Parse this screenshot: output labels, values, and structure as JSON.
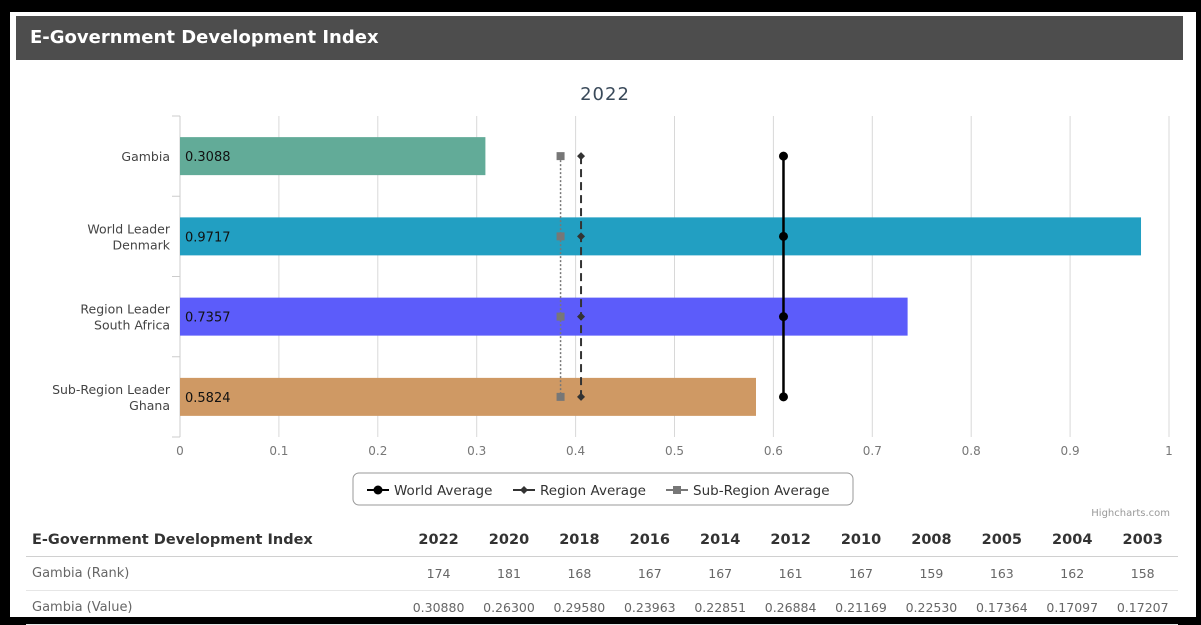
{
  "header": {
    "title": "E-Government Development Index"
  },
  "chart_data": {
    "type": "bar",
    "orientation": "horizontal",
    "title": "2022",
    "categories": [
      [
        "Gambia"
      ],
      [
        "World Leader",
        "Denmark"
      ],
      [
        "Region Leader",
        "South Africa"
      ],
      [
        "Sub-Region Leader",
        "Ghana"
      ]
    ],
    "values": [
      0.3088,
      0.9717,
      0.7357,
      0.5824
    ],
    "value_labels": [
      "0.3088",
      "0.9717",
      "0.7357",
      "0.5824"
    ],
    "bar_colors": [
      "#62ab98",
      "#229fc2",
      "#5c5cfa",
      "#cf9964"
    ],
    "xlim": [
      0,
      1
    ],
    "ticks": [
      "0",
      "0.1",
      "0.2",
      "0.3",
      "0.4",
      "0.5",
      "0.6",
      "0.7",
      "0.8",
      "0.9",
      "1"
    ],
    "grid": true,
    "reference_series": [
      {
        "name": "World Average",
        "value": 0.6102,
        "marker": "circle",
        "line": "solid",
        "color": "#000000"
      },
      {
        "name": "Region Average",
        "value": 0.4055,
        "marker": "diamond",
        "line": "dashed",
        "color": "#333333"
      },
      {
        "name": "Sub-Region Average",
        "value": 0.3848,
        "marker": "square",
        "line": "dotted",
        "color": "#777777"
      }
    ],
    "legend_position": "bottom-center",
    "credits": "Highcharts.com"
  },
  "table": {
    "header_label": "E-Government Development Index",
    "years": [
      "2022",
      "2020",
      "2018",
      "2016",
      "2014",
      "2012",
      "2010",
      "2008",
      "2005",
      "2004",
      "2003"
    ],
    "rows": [
      {
        "label": "Gambia (Rank)",
        "values": [
          "174",
          "181",
          "168",
          "167",
          "167",
          "161",
          "167",
          "159",
          "163",
          "162",
          "158"
        ]
      },
      {
        "label": "Gambia (Value)",
        "values": [
          "0.30880",
          "0.26300",
          "0.29580",
          "0.23963",
          "0.22851",
          "0.26884",
          "0.21169",
          "0.22530",
          "0.17364",
          "0.17097",
          "0.17207"
        ]
      }
    ]
  }
}
